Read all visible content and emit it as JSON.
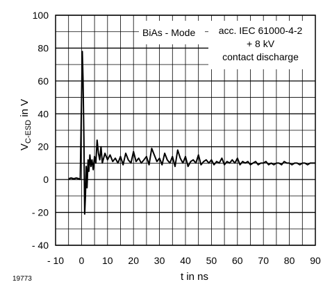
{
  "chart_data": {
    "type": "line",
    "title": "",
    "xlabel": "t in ns",
    "ylabel_main": "V",
    "ylabel_sub": "C-ESD",
    "ylabel_tail": " in V",
    "xlim": [
      -10,
      90
    ],
    "ylim": [
      -40,
      100
    ],
    "x_ticks": [
      -10,
      0,
      10,
      20,
      30,
      40,
      50,
      60,
      70,
      80,
      90
    ],
    "x_tick_labels": [
      "- 10",
      "0",
      "10",
      "20",
      "30",
      "40",
      "50",
      "60",
      "70",
      "80",
      "90"
    ],
    "y_ticks": [
      -40,
      -20,
      0,
      20,
      40,
      60,
      80,
      100
    ],
    "y_tick_labels": [
      "- 40",
      "- 20",
      "0",
      "20",
      "40",
      "60",
      "80",
      "100"
    ],
    "x_minor_step": 5,
    "y_minor_step": 10,
    "grid": true,
    "mode_label": "BiAs - Mode",
    "standard_lines": [
      "acc. IEC 61000-4-2",
      "+ 8 kV",
      "contact discharge"
    ],
    "figure_number": "19773",
    "series": [
      {
        "x": [
          -5,
          -4,
          -3,
          -2,
          -1,
          -0.5,
          0,
          0.3,
          0.6,
          0.9,
          1.2,
          1.5,
          1.8,
          2.1,
          2.5,
          2.8,
          3.2,
          3.6,
          4,
          4.5,
          5,
          5.5,
          6,
          6.5,
          7,
          7.5,
          8,
          9,
          10,
          11,
          12,
          13,
          14,
          15,
          16,
          17,
          18,
          19,
          20,
          21,
          22,
          23,
          24,
          25,
          26,
          27,
          28,
          29,
          30,
          31,
          32,
          33,
          34,
          35,
          36,
          37,
          38,
          39,
          40,
          41,
          42,
          43,
          44,
          45,
          46,
          47,
          48,
          49,
          50,
          51,
          52,
          53,
          54,
          55,
          56,
          57,
          58,
          59,
          60,
          61,
          62,
          63,
          64,
          65,
          66,
          67,
          68,
          69,
          70,
          71,
          72,
          73,
          74,
          75,
          76,
          77,
          78,
          79,
          80,
          81,
          82,
          83,
          84,
          85,
          86,
          87,
          88,
          89,
          90
        ],
        "y": [
          0.5,
          1,
          0.5,
          1,
          0.5,
          0,
          50,
          78,
          60,
          25,
          -21,
          -10,
          8,
          -5,
          12,
          5,
          15,
          8,
          12,
          6,
          14,
          10,
          24,
          16,
          12,
          20,
          10,
          16,
          12,
          15,
          11,
          13,
          10,
          14,
          9,
          16,
          12,
          10,
          17,
          11,
          13,
          10,
          12,
          14,
          9,
          19,
          15,
          11,
          13,
          9,
          16,
          12,
          10,
          14,
          8,
          18,
          13,
          10,
          14,
          8,
          11,
          12,
          10,
          15,
          9,
          11,
          12,
          10,
          12,
          9,
          11,
          10,
          13,
          9,
          11,
          10,
          12,
          10,
          13,
          9,
          11,
          10,
          11,
          9,
          10,
          11,
          9,
          10,
          10,
          11,
          9,
          10,
          9,
          10,
          10,
          9,
          11,
          10,
          10,
          9,
          10,
          10,
          9,
          10,
          10,
          9,
          10,
          10,
          10
        ]
      }
    ]
  }
}
